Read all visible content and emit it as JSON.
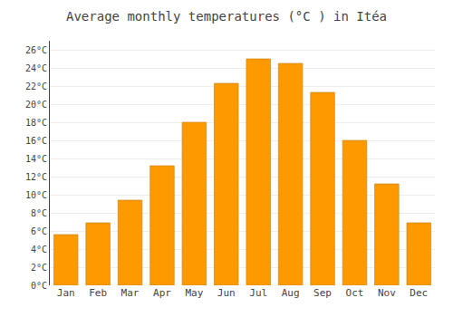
{
  "chart_data": {
    "type": "bar",
    "title": "Average monthly temperatures (°C ) in Itéa",
    "categories": [
      "Jan",
      "Feb",
      "Mar",
      "Apr",
      "May",
      "Jun",
      "Jul",
      "Aug",
      "Sep",
      "Oct",
      "Nov",
      "Dec"
    ],
    "values": [
      5.6,
      6.9,
      9.4,
      13.2,
      18.0,
      22.3,
      25.0,
      24.5,
      21.3,
      16.0,
      11.2,
      6.9
    ],
    "color": "#FF9900",
    "ylim": [
      0,
      27
    ],
    "yticks": [
      {
        "value": 0,
        "label": "0°C"
      },
      {
        "value": 2,
        "label": "2°C"
      },
      {
        "value": 4,
        "label": "4°C"
      },
      {
        "value": 6,
        "label": "6°C"
      },
      {
        "value": 8,
        "label": "8°C"
      },
      {
        "value": 10,
        "label": "10°C"
      },
      {
        "value": 12,
        "label": "12°C"
      },
      {
        "value": 14,
        "label": "14°C"
      },
      {
        "value": 16,
        "label": "16°C"
      },
      {
        "value": 18,
        "label": "18°C"
      },
      {
        "value": 20,
        "label": "20°C"
      },
      {
        "value": 22,
        "label": "22°C"
      },
      {
        "value": 24,
        "label": "24°C"
      },
      {
        "value": 26,
        "label": "26°C"
      }
    ],
    "grid": true
  }
}
